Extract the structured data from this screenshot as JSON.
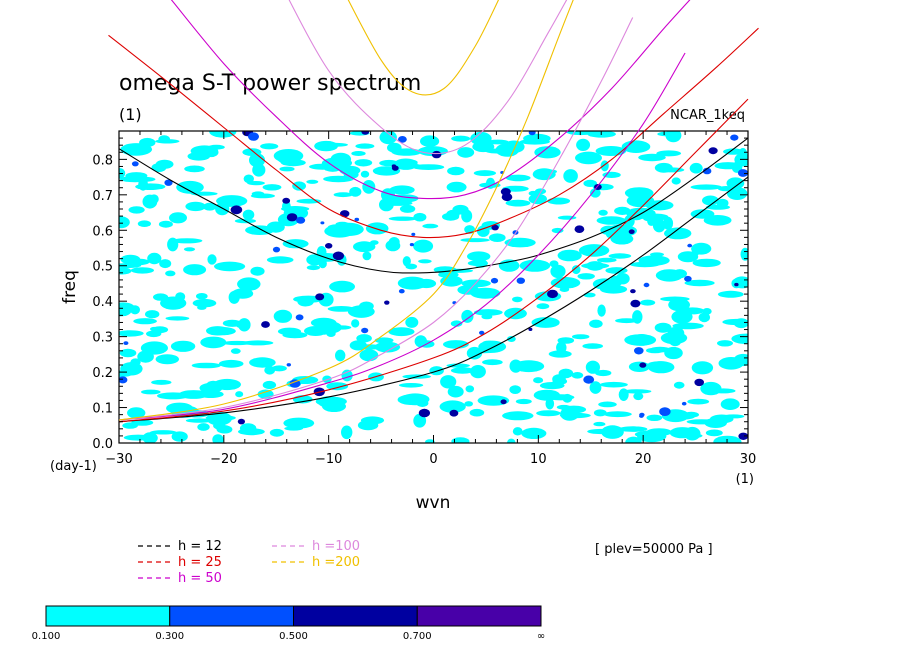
{
  "chart_data": {
    "type": "heatmap",
    "title": "omega S-T power spectrum",
    "subtitle": "(1)",
    "source_label": "NCAR_1keq",
    "xlabel": "wvn",
    "ylabel": "freq",
    "x_unit": "(1)",
    "y_unit": "(day-1)",
    "xlim": [
      -30,
      30
    ],
    "ylim": [
      0,
      0.88
    ],
    "xticks": [
      "−30",
      "−20",
      "−10",
      "0",
      "10",
      "20",
      "30"
    ],
    "xtick_values": [
      -30,
      -20,
      -10,
      0,
      10,
      20,
      30
    ],
    "yticks": [
      "0.0",
      "0.1",
      "0.2",
      "0.3",
      "0.4",
      "0.5",
      "0.6",
      "0.7",
      "0.8"
    ],
    "ytick_values": [
      0,
      0.1,
      0.2,
      0.3,
      0.4,
      0.5,
      0.6,
      0.7,
      0.8
    ],
    "annotation": "[ plev=50000 Pa ]",
    "dispersion_legend": [
      {
        "label": "h = 12",
        "color": "#000000"
      },
      {
        "label": "h = 25",
        "color": "#dd0000"
      },
      {
        "label": "h = 50",
        "color": "#cc00cc"
      },
      {
        "label": "h =100",
        "color": "#dd88dd"
      },
      {
        "label": "h =200",
        "color": "#f0c000"
      }
    ],
    "colorbar": {
      "levels": [
        "0.100",
        "0.300",
        "0.500",
        "0.700",
        "∞"
      ],
      "colors": [
        "#00ffff",
        "#0050ff",
        "#0000a0",
        "#4800a8"
      ]
    },
    "dispersion_curves": [
      {
        "h": 12,
        "color": "#000000",
        "points": [
          [
            -30,
            0.06
          ],
          [
            -20,
            0.085
          ],
          [
            -10,
            0.13
          ],
          [
            0,
            0.2
          ],
          [
            5,
            0.26
          ],
          [
            10,
            0.34
          ],
          [
            15,
            0.43
          ],
          [
            20,
            0.53
          ],
          [
            25,
            0.64
          ],
          [
            30,
            0.75
          ]
        ]
      },
      {
        "h": 12,
        "color": "#000000",
        "points": [
          [
            -30,
            0.83
          ],
          [
            -25,
            0.74
          ],
          [
            -20,
            0.66
          ],
          [
            -15,
            0.58
          ],
          [
            -10,
            0.52
          ],
          [
            -5,
            0.485
          ],
          [
            -1,
            0.48
          ],
          [
            3,
            0.49
          ],
          [
            7,
            0.51
          ],
          [
            10,
            0.53
          ],
          [
            15,
            0.58
          ],
          [
            20,
            0.65
          ],
          [
            25,
            0.75
          ],
          [
            30,
            0.86
          ]
        ]
      },
      {
        "h": 25,
        "color": "#dd0000",
        "points": [
          [
            -30,
            0.06
          ],
          [
            -20,
            0.09
          ],
          [
            -10,
            0.15
          ],
          [
            0,
            0.24
          ],
          [
            5,
            0.31
          ],
          [
            10,
            0.41
          ],
          [
            15,
            0.53
          ],
          [
            20,
            0.67
          ],
          [
            25,
            0.82
          ],
          [
            30,
            0.97
          ]
        ]
      },
      {
        "h": 25,
        "color": "#dd0000",
        "points": [
          [
            -31,
            1.15
          ],
          [
            -25,
            1.01
          ],
          [
            -20,
            0.89
          ],
          [
            -15,
            0.77
          ],
          [
            -10,
            0.66
          ],
          [
            -5,
            0.6
          ],
          [
            -1,
            0.58
          ],
          [
            3,
            0.59
          ],
          [
            7,
            0.63
          ],
          [
            12,
            0.7
          ],
          [
            17,
            0.8
          ],
          [
            22,
            0.93
          ],
          [
            27,
            1.06
          ],
          [
            31,
            1.17
          ]
        ]
      },
      {
        "h": 50,
        "color": "#cc00cc",
        "points": [
          [
            -30,
            0.065
          ],
          [
            -20,
            0.095
          ],
          [
            -10,
            0.17
          ],
          [
            -5,
            0.22
          ],
          [
            0,
            0.29
          ],
          [
            5,
            0.39
          ],
          [
            10,
            0.53
          ],
          [
            15,
            0.7
          ],
          [
            20,
            0.9
          ],
          [
            24,
            1.1
          ]
        ]
      },
      {
        "h": 50,
        "color": "#cc00cc",
        "points": [
          [
            -25,
            1.25
          ],
          [
            -20,
            1.07
          ],
          [
            -15,
            0.92
          ],
          [
            -10,
            0.79
          ],
          [
            -5,
            0.71
          ],
          [
            -1,
            0.69
          ],
          [
            3,
            0.7
          ],
          [
            7,
            0.75
          ],
          [
            12,
            0.86
          ],
          [
            17,
            1.0
          ],
          [
            22,
            1.17
          ],
          [
            26,
            1.3
          ]
        ]
      },
      {
        "h": 100,
        "color": "#dd88dd",
        "points": [
          [
            -30,
            0.065
          ],
          [
            -20,
            0.1
          ],
          [
            -10,
            0.18
          ],
          [
            -5,
            0.25
          ],
          [
            0,
            0.34
          ],
          [
            4,
            0.45
          ],
          [
            8,
            0.6
          ],
          [
            12,
            0.8
          ],
          [
            16,
            1.02
          ],
          [
            19,
            1.2
          ]
        ]
      },
      {
        "h": 100,
        "color": "#dd88dd",
        "points": [
          [
            -15,
            1.32
          ],
          [
            -10,
            1.05
          ],
          [
            -5,
            0.89
          ],
          [
            -1,
            0.82
          ],
          [
            3,
            0.84
          ],
          [
            7,
            0.96
          ],
          [
            11,
            1.16
          ],
          [
            14,
            1.32
          ]
        ]
      },
      {
        "h": 200,
        "color": "#f0c000",
        "points": [
          [
            -30,
            0.065
          ],
          [
            -20,
            0.11
          ],
          [
            -10,
            0.21
          ],
          [
            -5,
            0.3
          ],
          [
            0,
            0.42
          ],
          [
            3,
            0.55
          ],
          [
            6,
            0.72
          ],
          [
            9,
            0.92
          ],
          [
            12,
            1.15
          ],
          [
            14,
            1.3
          ]
        ]
      },
      {
        "h": 200,
        "color": "#f0c000",
        "points": [
          [
            -9,
            1.3
          ],
          [
            -5,
            1.08
          ],
          [
            -2,
            0.99
          ],
          [
            1,
            1.0
          ],
          [
            4,
            1.12
          ],
          [
            7,
            1.3
          ]
        ]
      }
    ],
    "contour_seed": 42
  }
}
